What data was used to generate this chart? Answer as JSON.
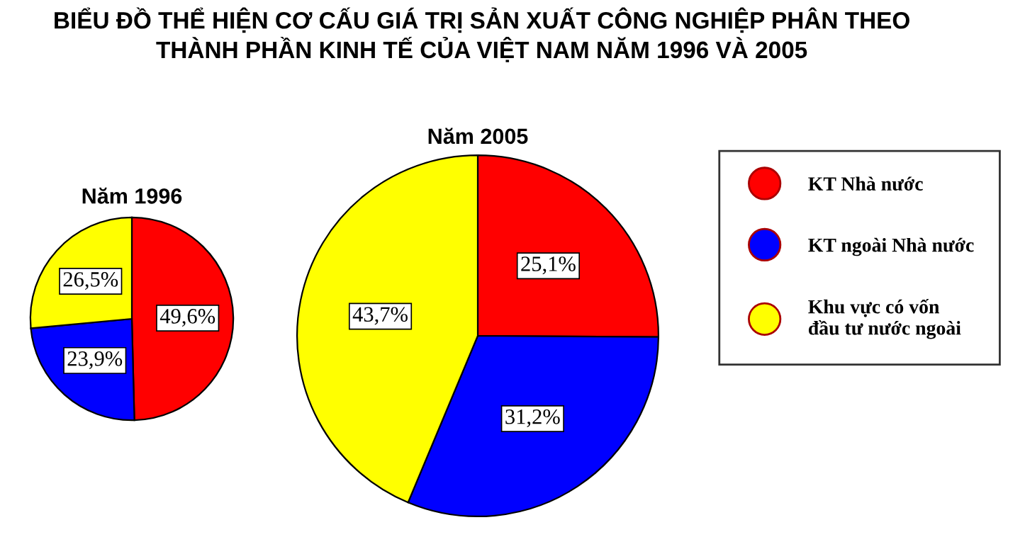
{
  "chart_data": [
    {
      "type": "pie",
      "title": "BIỂU ĐỒ THỂ HIỆN CƠ CẤU GIÁ TRỊ SẢN XUẤT CÔNG NGHIỆP PHÂN THEO\nTHÀNH PHẦN KINH TẾ CỦA VIỆT NAM NĂM 1996 VÀ 2005",
      "subtitle": "Năm 1996",
      "categories": [
        "KT Nhà nước",
        "KT ngoài Nhà nước",
        "Khu vực có vốn\nđầu tư nước ngoài"
      ],
      "values": [
        49.6,
        23.9,
        26.5
      ],
      "colors": [
        "#ff0000",
        "#0000ff",
        "#ffff00"
      ],
      "value_labels": [
        "49,6%",
        "23,9%",
        "26,5%"
      ],
      "legend": "right"
    },
    {
      "type": "pie",
      "title": "Năm 2005",
      "categories": [
        null,
        null,
        null
      ],
      "values": [
        25.1,
        31.2,
        43.7
      ],
      "colors": [
        "#ff0000",
        "#0000ff",
        "#ffff00"
      ],
      "value_labels": [
        "25,1%",
        "31,2%",
        "43,7%"
      ]
    }
  ]
}
